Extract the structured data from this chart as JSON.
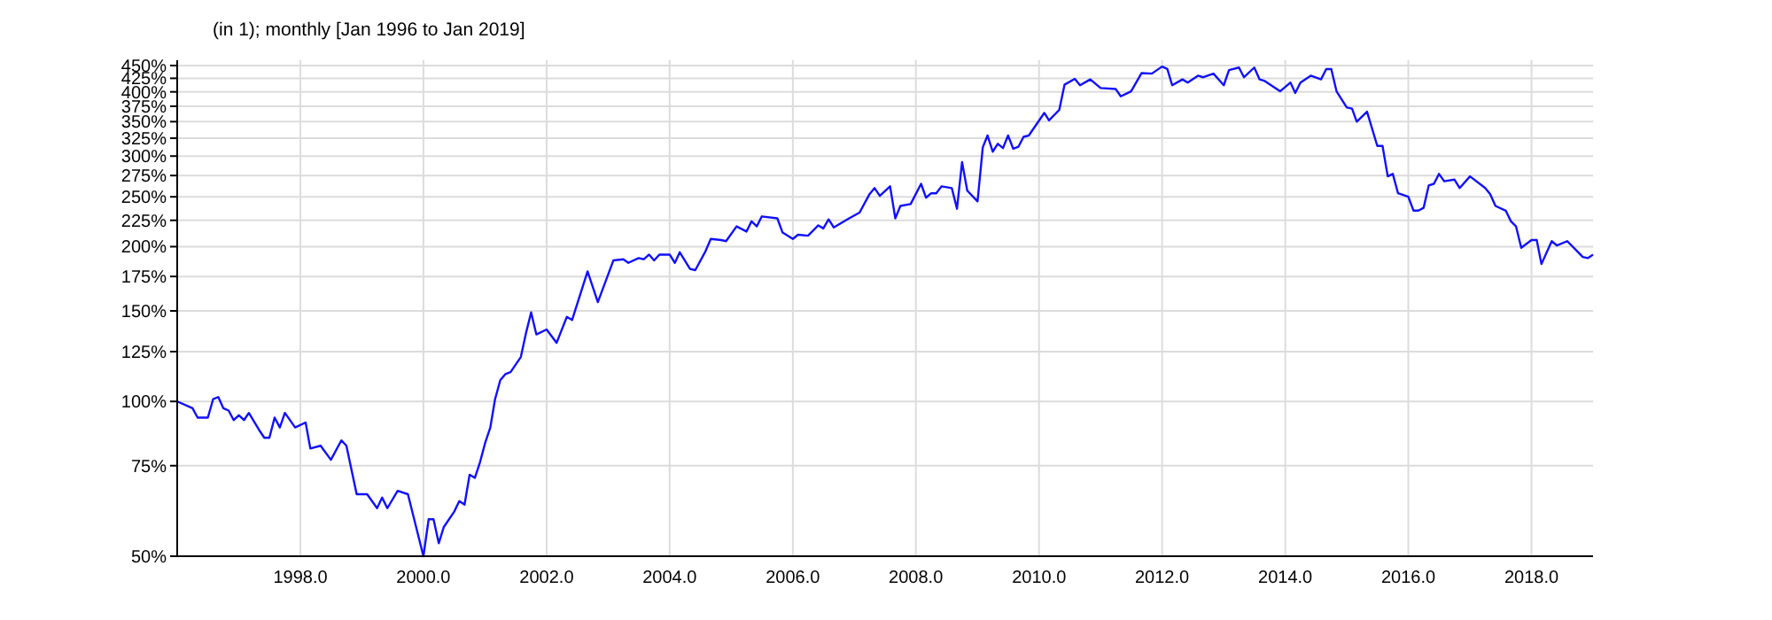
{
  "chart_data": {
    "type": "line",
    "title": "(in 1); monthly [Jan 1996 to Jan 2019]",
    "log": true,
    "grid": true,
    "xlim": [
      "1996-01",
      "2019-01"
    ],
    "xticks": [
      {
        "value": "1998-01",
        "label": "1998.0"
      },
      {
        "value": "2000-01",
        "label": "2000.0"
      },
      {
        "value": "2002-01",
        "label": "2002.0"
      },
      {
        "value": "2004-01",
        "label": "2004.0"
      },
      {
        "value": "2006-01",
        "label": "2006.0"
      },
      {
        "value": "2008-01",
        "label": "2008.0"
      },
      {
        "value": "2010-01",
        "label": "2010.0"
      },
      {
        "value": "2012-01",
        "label": "2012.0"
      },
      {
        "value": "2014-01",
        "label": "2014.0"
      },
      {
        "value": "2016-01",
        "label": "2016.0"
      },
      {
        "value": "2018-01",
        "label": "2018.0"
      }
    ],
    "ylim": [
      50,
      450
    ],
    "yticks": [
      {
        "value": 50,
        "label": "50%"
      },
      {
        "value": 75,
        "label": "75%"
      },
      {
        "value": 100,
        "label": "100%"
      },
      {
        "value": 125,
        "label": "125%"
      },
      {
        "value": 150,
        "label": "150%"
      },
      {
        "value": 175,
        "label": "175%"
      },
      {
        "value": 200,
        "label": "200%"
      },
      {
        "value": 225,
        "label": "225%"
      },
      {
        "value": 250,
        "label": "250%"
      },
      {
        "value": 275,
        "label": "275%"
      },
      {
        "value": 300,
        "label": "300%"
      },
      {
        "value": 325,
        "label": "325%"
      },
      {
        "value": 350,
        "label": "350%"
      },
      {
        "value": 375,
        "label": "375%"
      },
      {
        "value": 400,
        "label": "400%"
      },
      {
        "value": 425,
        "label": "425%"
      },
      {
        "value": 450,
        "label": "450%"
      }
    ],
    "series": [
      {
        "color": "#1010ff",
        "x": [
          "1996-01",
          "1996-04",
          "1996-05",
          "1996-07",
          "1996-08",
          "1996-09",
          "1996-10",
          "1996-11",
          "1996-12",
          "1997-01",
          "1997-02",
          "1997-03",
          "1997-05",
          "1997-06",
          "1997-07",
          "1997-08",
          "1997-09",
          "1997-10",
          "1997-12",
          "1998-02",
          "1998-03",
          "1998-05",
          "1998-07",
          "1998-09",
          "1998-10",
          "1998-12",
          "1999-02",
          "1999-04",
          "1999-05",
          "1999-06",
          "1999-08",
          "1999-10",
          "2000-01",
          "2000-02",
          "2000-03",
          "2000-04",
          "2000-05",
          "2000-07",
          "2000-08",
          "2000-09",
          "2000-10",
          "2000-11",
          "2000-12",
          "2001-01",
          "2001-02",
          "2001-03",
          "2001-04",
          "2001-05",
          "2001-06",
          "2001-08",
          "2001-09",
          "2001-10",
          "2001-11",
          "2002-01",
          "2002-03",
          "2002-05",
          "2002-06",
          "2002-09",
          "2002-11",
          "2003-02",
          "2003-04",
          "2003-05",
          "2003-07",
          "2003-08",
          "2003-09",
          "2003-10",
          "2003-11",
          "2004-01",
          "2004-02",
          "2004-03",
          "2004-05",
          "2004-06",
          "2004-08",
          "2004-09",
          "2004-11",
          "2004-12",
          "2005-02",
          "2005-04",
          "2005-05",
          "2005-06",
          "2005-07",
          "2005-10",
          "2005-11",
          "2006-01",
          "2006-02",
          "2006-04",
          "2006-06",
          "2006-07",
          "2006-08",
          "2006-09",
          "2006-12",
          "2007-02",
          "2007-04",
          "2007-05",
          "2007-06",
          "2007-08",
          "2007-09",
          "2007-10",
          "2007-12",
          "2008-02",
          "2008-03",
          "2008-04",
          "2008-05",
          "2008-06",
          "2008-08",
          "2008-09",
          "2008-10",
          "2008-11",
          "2009-01",
          "2009-02",
          "2009-03",
          "2009-04",
          "2009-05",
          "2009-06",
          "2009-07",
          "2009-08",
          "2009-09",
          "2009-10",
          "2009-11",
          "2010-02",
          "2010-03",
          "2010-05",
          "2010-06",
          "2010-08",
          "2010-09",
          "2010-11",
          "2011-01",
          "2011-04",
          "2011-05",
          "2011-07",
          "2011-09",
          "2011-11",
          "2012-01",
          "2012-02",
          "2012-03",
          "2012-05",
          "2012-06",
          "2012-08",
          "2012-09",
          "2012-11",
          "2013-01",
          "2013-02",
          "2013-04",
          "2013-05",
          "2013-07",
          "2013-08",
          "2013-09",
          "2013-12",
          "2014-02",
          "2014-03",
          "2014-04",
          "2014-06",
          "2014-08",
          "2014-09",
          "2014-10",
          "2014-11",
          "2015-01",
          "2015-02",
          "2015-03",
          "2015-05",
          "2015-07",
          "2015-08",
          "2015-09",
          "2015-10",
          "2015-11",
          "2016-01",
          "2016-02",
          "2016-03",
          "2016-04",
          "2016-05",
          "2016-06",
          "2016-07",
          "2016-08",
          "2016-10",
          "2016-11",
          "2017-01",
          "2017-04",
          "2017-05",
          "2017-06",
          "2017-08",
          "2017-09",
          "2017-10",
          "2017-11",
          "2018-01",
          "2018-02",
          "2018-03",
          "2018-05",
          "2018-06",
          "2018-08",
          "2018-11",
          "2018-12",
          "2019-01"
        ],
        "values": [
          100,
          97,
          93,
          93,
          101,
          102,
          97,
          96,
          92,
          94,
          92,
          95,
          88,
          85,
          85,
          93,
          89,
          95,
          89,
          91,
          81,
          82,
          77,
          84,
          82,
          66,
          66,
          62,
          65,
          62,
          67,
          66,
          50,
          59,
          59,
          53,
          57,
          61,
          64,
          63,
          72,
          71,
          76,
          83,
          89,
          101,
          110,
          113,
          114,
          122,
          136,
          149,
          135,
          138,
          130,
          146,
          144,
          179,
          156,
          188,
          189,
          186,
          190,
          189,
          193,
          188,
          193,
          193,
          186,
          195,
          181,
          180,
          196,
          207,
          206,
          205,
          219,
          214,
          224,
          219,
          229,
          227,
          213,
          207,
          211,
          210,
          220,
          217,
          226,
          218,
          227,
          233,
          253,
          260,
          251,
          262,
          227,
          240,
          242,
          265,
          249,
          254,
          254,
          262,
          260,
          237,
          292,
          257,
          245,
          312,
          329,
          306,
          317,
          311,
          329,
          310,
          313,
          327,
          329,
          364,
          352,
          369,
          413,
          424,
          412,
          423,
          407,
          405,
          392,
          401,
          435,
          434,
          448,
          443,
          412,
          423,
          417,
          430,
          427,
          434,
          412,
          441,
          446,
          427,
          446,
          423,
          420,
          401,
          417,
          398,
          417,
          430,
          423,
          443,
          443,
          401,
          373,
          371,
          350,
          366,
          314,
          314,
          274,
          277,
          254,
          250,
          235,
          235,
          238,
          263,
          265,
          277,
          268,
          270,
          260,
          274,
          260,
          253,
          240,
          235,
          224,
          219,
          199,
          206,
          206,
          185,
          205,
          201,
          205,
          191,
          190,
          193
        ]
      }
    ]
  }
}
